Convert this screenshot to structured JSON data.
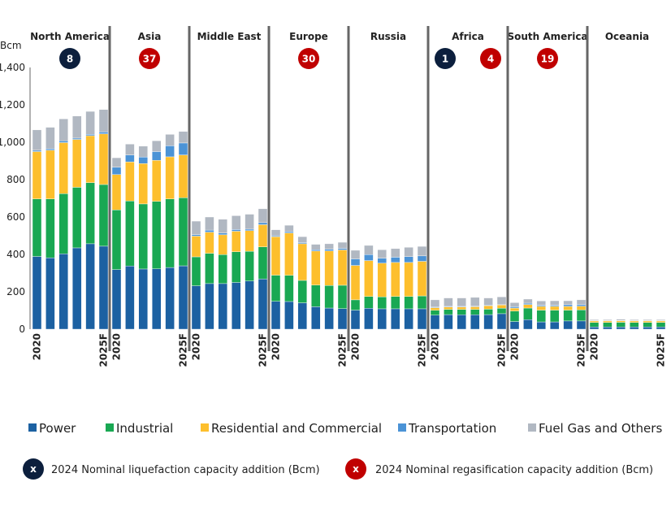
{
  "chart_data": {
    "type": "bar",
    "stacked": true,
    "ylabel": "Bcm",
    "ylim": [
      0,
      1400
    ],
    "yticks": [
      "0",
      "200",
      "400",
      "600",
      "800",
      "1,000",
      "1,200",
      "1,400"
    ],
    "grid": false,
    "x_tick_labels": [
      "2020",
      "2025F"
    ],
    "years": [
      "2020",
      "2021",
      "2022",
      "2023",
      "2024",
      "2025F"
    ],
    "series": [
      {
        "name": "Power",
        "color": "#1c61a2"
      },
      {
        "name": "Industrial",
        "color": "#19a853"
      },
      {
        "name": "Residential and Commercial",
        "color": "#fdbf2d"
      },
      {
        "name": "Transportation",
        "color": "#4b93d6"
      },
      {
        "name": "Fuel Gas and Others",
        "color": "#b1b8c2"
      }
    ],
    "groups": [
      {
        "name": "North America",
        "badges": [
          {
            "value": "8",
            "type": "liquefaction"
          }
        ],
        "values": [
          [
            389,
            382,
            403,
            435,
            457,
            444
          ],
          [
            308,
            315,
            322,
            324,
            327,
            330
          ],
          [
            253,
            260,
            273,
            256,
            251,
            271
          ],
          [
            7,
            8,
            10,
            7,
            7,
            10
          ],
          [
            109,
            115,
            117,
            118,
            123,
            120
          ]
        ]
      },
      {
        "name": "Asia",
        "badges": [
          {
            "value": "37",
            "type": "regasification"
          }
        ],
        "values": [
          [
            319,
            338,
            322,
            323,
            330,
            339
          ],
          [
            319,
            348,
            348,
            361,
            367,
            364
          ],
          [
            189,
            209,
            216,
            219,
            225,
            229
          ],
          [
            39,
            37,
            35,
            47,
            59,
            64
          ],
          [
            51,
            58,
            58,
            58,
            61,
            62
          ]
        ]
      },
      {
        "name": "Middle East",
        "badges": [],
        "values": [
          [
            232,
            244,
            244,
            250,
            258,
            269
          ],
          [
            155,
            162,
            155,
            164,
            159,
            171
          ],
          [
            111,
            113,
            106,
            110,
            110,
            119
          ],
          [
            8,
            11,
            9,
            9,
            8,
            11
          ],
          [
            72,
            70,
            74,
            74,
            80,
            74
          ]
        ]
      },
      {
        "name": "Europe",
        "badges": [
          {
            "value": "30",
            "type": "regasification"
          }
        ],
        "values": [
          [
            149,
            148,
            141,
            120,
            113,
            110
          ],
          [
            140,
            140,
            120,
            116,
            121,
            125
          ],
          [
            206,
            227,
            196,
            182,
            185,
            189
          ],
          [
            5,
            7,
            6,
            7,
            9,
            8
          ],
          [
            32,
            34,
            32,
            29,
            29,
            33
          ]
        ]
      },
      {
        "name": "Russia",
        "badges": [],
        "values": [
          [
            102,
            112,
            109,
            109,
            109,
            109
          ],
          [
            55,
            63,
            64,
            66,
            66,
            69
          ],
          [
            184,
            192,
            180,
            182,
            182,
            185
          ],
          [
            35,
            32,
            27,
            28,
            31,
            29
          ],
          [
            46,
            49,
            45,
            46,
            50,
            51
          ]
        ]
      },
      {
        "name": "Africa",
        "badges": [
          {
            "value": "1",
            "type": "liquefaction"
          },
          {
            "value": "4",
            "type": "regasification"
          }
        ],
        "values": [
          [
            75,
            78,
            77,
            77,
            78,
            83
          ],
          [
            26,
            28,
            29,
            29,
            29,
            29
          ],
          [
            14,
            13,
            13,
            14,
            19,
            18
          ],
          [
            3,
            3,
            3,
            3,
            3,
            1
          ],
          [
            39,
            45,
            45,
            47,
            38,
            42
          ]
        ]
      },
      {
        "name": "South America",
        "badges": [
          {
            "value": "19",
            "type": "regasification"
          }
        ],
        "values": [
          [
            41,
            51,
            39,
            39,
            44,
            44
          ],
          [
            56,
            62,
            63,
            63,
            58,
            59
          ],
          [
            16,
            19,
            20,
            20,
            20,
            20
          ],
          [
            7,
            7,
            6,
            6,
            9,
            8
          ],
          [
            22,
            22,
            23,
            24,
            21,
            26
          ]
        ]
      },
      {
        "name": "Oceania",
        "badges": [],
        "values": [
          [
            12,
            12,
            12,
            12,
            12,
            12
          ],
          [
            24,
            24,
            25,
            24,
            24,
            24
          ],
          [
            8,
            8,
            8,
            8,
            8,
            8
          ],
          [
            2,
            2,
            2,
            2,
            2,
            2
          ],
          [
            5,
            5,
            6,
            5,
            5,
            5
          ]
        ]
      }
    ],
    "badge_legend": {
      "marker": "x",
      "liquefaction": {
        "label": "2024 Nominal liquefaction capacity addition (Bcm)",
        "color": "#0c1f3d"
      },
      "regasification": {
        "label": "2024 Nominal regasification capacity addition (Bcm)",
        "color": "#c00000"
      }
    },
    "legend_placement": "bottom"
  }
}
